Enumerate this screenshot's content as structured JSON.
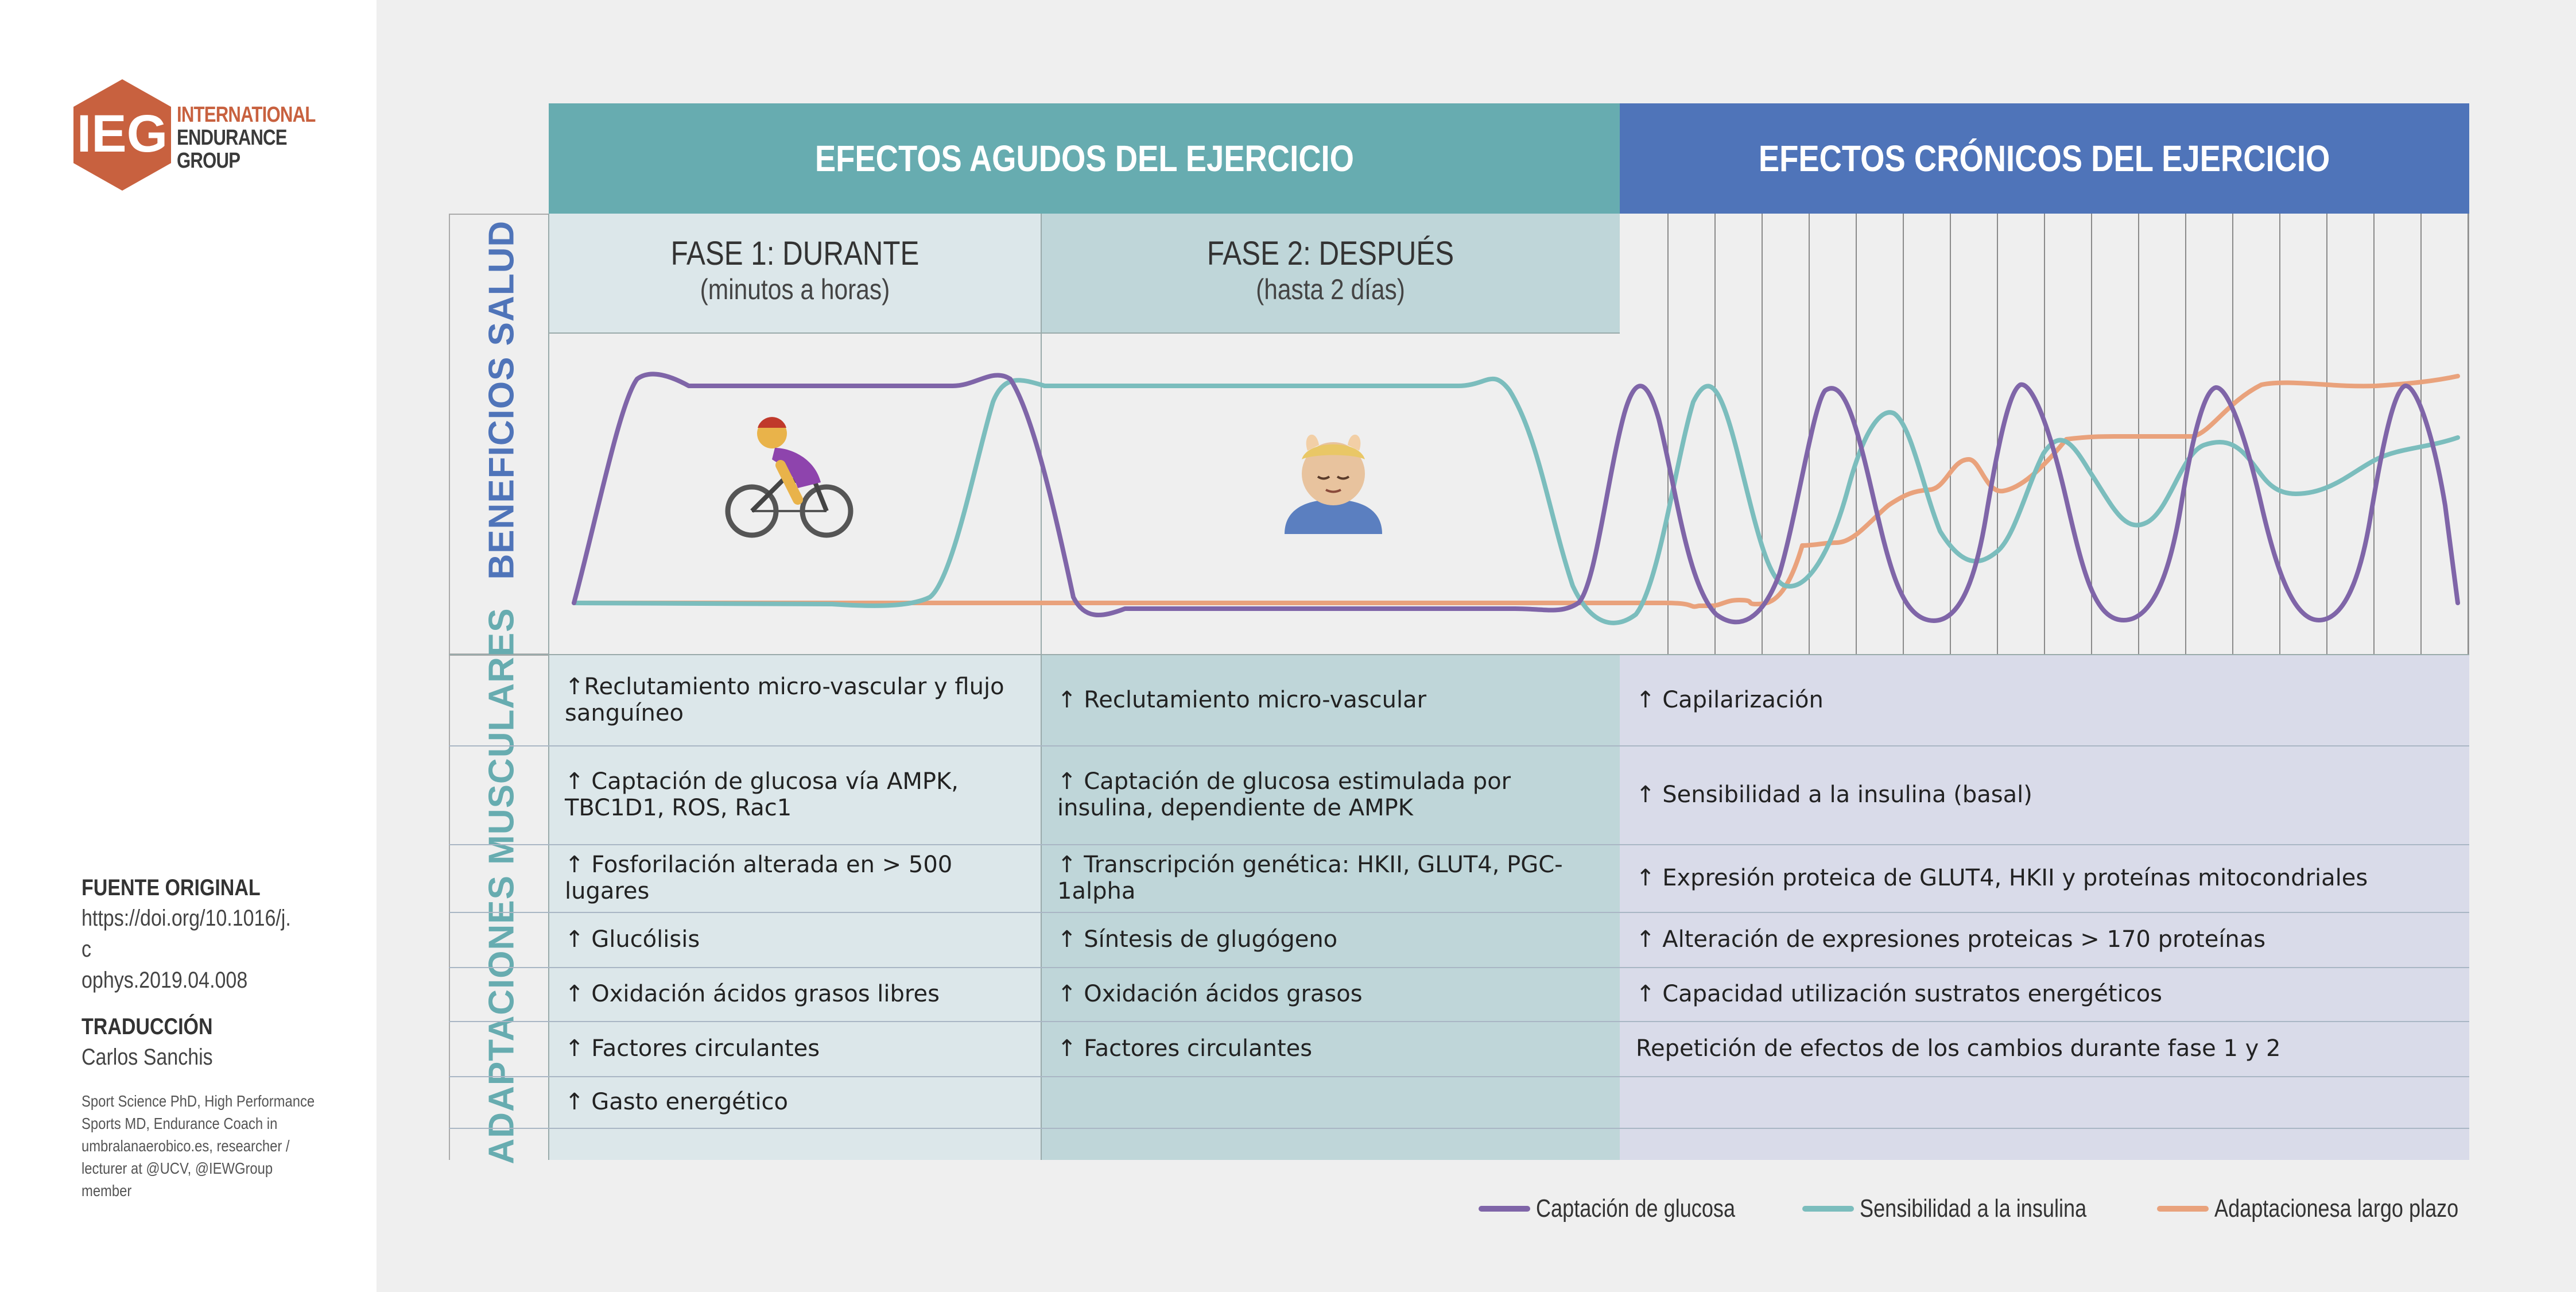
{
  "logo": {
    "letters": "IEG",
    "line1": "INTERNATIONAL",
    "line2": "ENDURANCE",
    "line3": "GROUP"
  },
  "colors": {
    "teal": "#67acb0",
    "blue": "#4f74b9",
    "purple": "#7f65a8",
    "cyan": "#7bbdbd",
    "orange": "#e9a27c",
    "logo_orange": "#c8613f"
  },
  "source": {
    "heading": "FUENTE ORIGINAL",
    "url_line1": "https://doi.org/10.1016/j.c",
    "url_line2": "ophys.2019.04.008",
    "translation_heading": "TRADUCCIÓN",
    "translator": "Carlos Sanchis",
    "bio": "Sport Science PhD, High Performance Sports MD, Endurance Coach in umbralanaerobico.es, researcher / lecturer at @UCV, @IEWGroup member"
  },
  "headers": {
    "acute": "EFECTOS AGUDOS DEL EJERCICIO",
    "chronic": "EFECTOS CRÓNICOS DEL EJERCICIO"
  },
  "row_labels": {
    "health": "BENEFICIOS SALUD",
    "muscle": "ADAPTACIONES MUSCULARES"
  },
  "phases": [
    {
      "title": "FASE 1: DURANTE",
      "sub": "(minutos a horas)",
      "icon": "cyclist-icon"
    },
    {
      "title": "FASE 2: DESPUÉS",
      "sub": "(hasta 2 días)",
      "icon": "relax-icon"
    }
  ],
  "fase1": [
    "↑Reclutamiento micro-vascular y flujo sanguíneo",
    "↑ Captación de glucosa vía AMPK, TBC1D1, ROS, Rac1",
    "↑ Fosforilación alterada en > 500 lugares",
    "↑ Glucólisis",
    "↑ Oxidación ácidos grasos libres",
    "↑ Factores circulantes",
    "↑ Gasto energético"
  ],
  "fase2": [
    "↑ Reclutamiento micro-vascular",
    "↑ Captación de glucosa estimulada por insulina, dependiente de AMPK",
    "↑ Transcripción genética: HKII, GLUT4, PGC-1alpha",
    "↑ Síntesis de glugógeno",
    "↑ Oxidación ácidos grasos",
    "↑ Factores circulantes",
    ""
  ],
  "cronicos": [
    "↑ Capilarización",
    "↑ Sensibilidad a la insulina (basal)",
    "↑ Expresión proteica de GLUT4, HKII y proteínas mitocondriales",
    "↑ Alteración de expresiones proteicas > 170 proteínas",
    "↑ Capacidad utilización sustratos energéticos",
    "Repetición de efectos de los cambios durante fase 1 y 2",
    ""
  ],
  "legend": [
    {
      "label": "Captación de glucosa",
      "color": "#7f65a8"
    },
    {
      "label": "Sensibilidad a la insulina",
      "color": "#7bbdbd"
    },
    {
      "label": "Adaptacionesa largo plazo",
      "color": "#e9a27c"
    }
  ]
}
